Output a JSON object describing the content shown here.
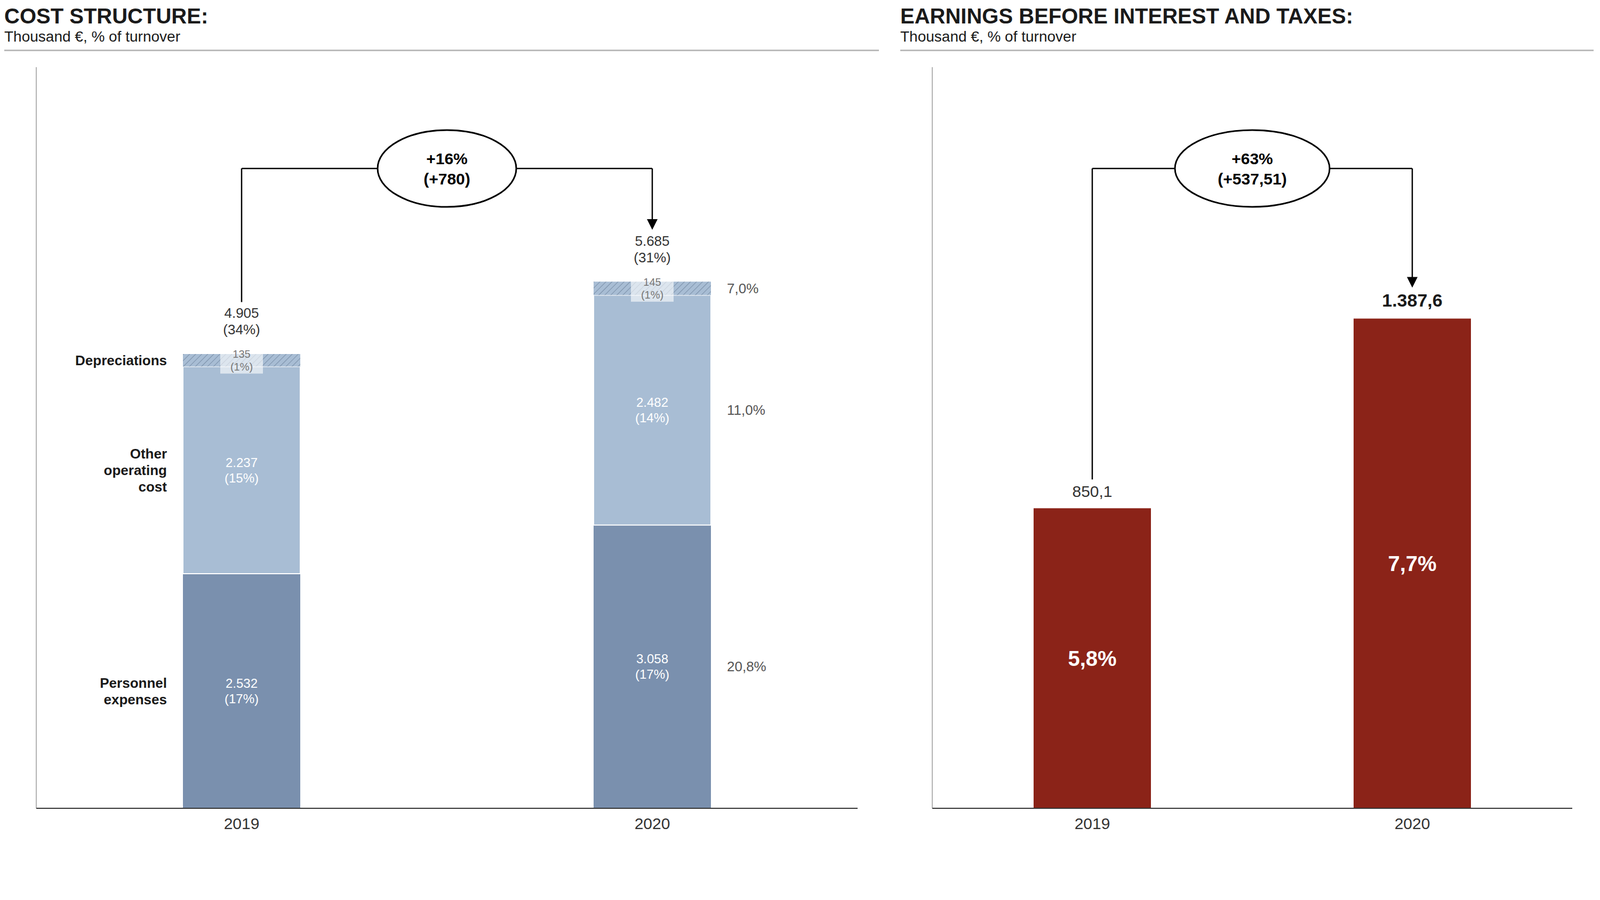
{
  "chart_data": [
    {
      "type": "bar",
      "stacked": true,
      "title": "COST STRUCTURE:",
      "subtitle": "Thousand €, % of turnover",
      "categories": [
        "2019",
        "2020"
      ],
      "series": [
        {
          "name": "Personnel\nexpenses",
          "color": "#7a90ae",
          "values": [
            2.532,
            3.058
          ],
          "value_labels": [
            "2.532\n(17%)",
            "3.058\n(17%)"
          ],
          "side_label": "20,8%"
        },
        {
          "name": "Other\noperating\ncost",
          "color": "#a8bdd4",
          "values": [
            2.237,
            2.482
          ],
          "value_labels": [
            "2.237\n(15%)",
            "2.482\n(14%)"
          ],
          "side_label": "11,0%"
        },
        {
          "name": "Depreciations",
          "color": "#a8bdd4",
          "values": [
            0.135,
            0.145
          ],
          "value_labels": [
            "135\n(1%)",
            "145\n(1%)"
          ],
          "side_label": "7,0%"
        }
      ],
      "totals": [
        4.905,
        5.685
      ],
      "total_labels": [
        "4.905\n(34%)",
        "5.685\n(31%)"
      ],
      "annotation": [
        "+16%",
        "(+780)"
      ],
      "ylim": [
        0,
        8
      ],
      "tick_labels": "x",
      "data_labels": true,
      "grid": false
    },
    {
      "type": "bar",
      "title": "EARNINGS BEFORE INTEREST AND TAXES:",
      "subtitle": "Thousand €, % of turnover",
      "categories": [
        "2019",
        "2020"
      ],
      "values": [
        850.1,
        1387.6
      ],
      "value_labels": [
        "850,1",
        "1.387,6"
      ],
      "share_labels": [
        "5,8%",
        "7,7%"
      ],
      "color": "#8b2318",
      "annotation": [
        "+63%",
        "(+537,51)"
      ],
      "ylim": [
        0,
        2100
      ],
      "tick_labels": "x",
      "data_labels": true,
      "grid": false
    }
  ]
}
